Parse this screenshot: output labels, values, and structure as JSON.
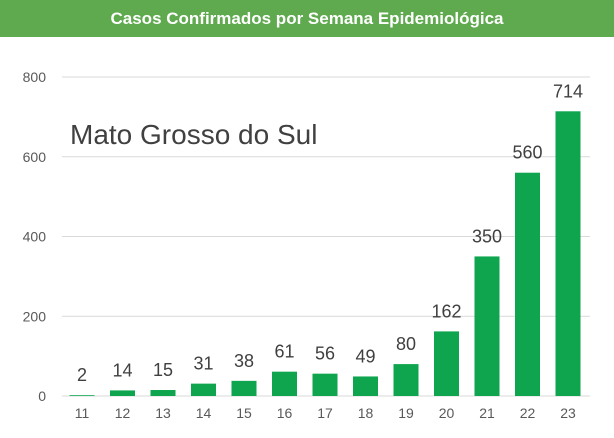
{
  "header": {
    "title": "Casos Confirmados por Semana Epidemiológica",
    "background": "#5fa94f"
  },
  "chart_data": {
    "type": "bar",
    "title": "Casos Confirmados por Semana Epidemiológica",
    "subtitle": "Mato Grosso do Sul",
    "xlabel": "",
    "ylabel": "",
    "categories": [
      "11",
      "12",
      "13",
      "14",
      "15",
      "16",
      "17",
      "18",
      "19",
      "20",
      "21",
      "22",
      "23"
    ],
    "values": [
      2,
      14,
      15,
      31,
      38,
      61,
      56,
      49,
      80,
      162,
      350,
      560,
      714
    ],
    "ylim": [
      0,
      800
    ],
    "yticks": [
      0,
      200,
      400,
      600,
      800
    ],
    "grid": true,
    "bar_color": "#0ea54e",
    "data_labels": true
  }
}
